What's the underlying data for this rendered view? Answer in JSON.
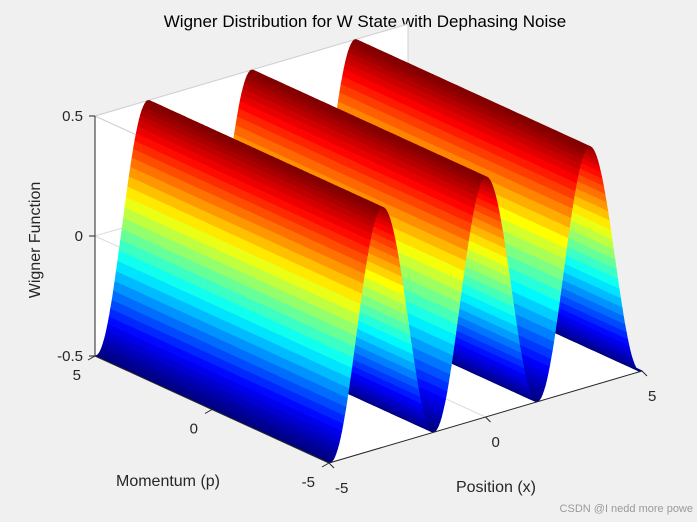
{
  "window": {
    "watermark": "CSDN @I nedd more powe"
  },
  "colors": {
    "figure_background": "#f0f0f0",
    "axes_background": "#ffffff",
    "grid": "#dcdcdc",
    "colormap": "jet"
  },
  "chart_data": {
    "type": "surface3d",
    "title": "Wigner Distribution for W State with Dephasing Noise",
    "xlabel": "Position (x)",
    "ylabel": "Momentum (p)",
    "zlabel": "Wigner Function",
    "xlim": [
      -5,
      5
    ],
    "ylim": [
      -5,
      5
    ],
    "zlim": [
      -0.5,
      0.5
    ],
    "x_ticks": [
      "-5",
      "0",
      "5"
    ],
    "y_ticks": [
      "-5",
      "0",
      "5"
    ],
    "z_ticks": [
      "-0.5",
      "0",
      "0.5"
    ],
    "grid": true,
    "colormap": "jet",
    "surface": {
      "description_formula": "z = 0.5 * cos(1.9 * x)",
      "amplitude": 0.5,
      "angular_frequency": 1.9,
      "peaks_along_x": 3,
      "constant_along_y": true
    }
  }
}
